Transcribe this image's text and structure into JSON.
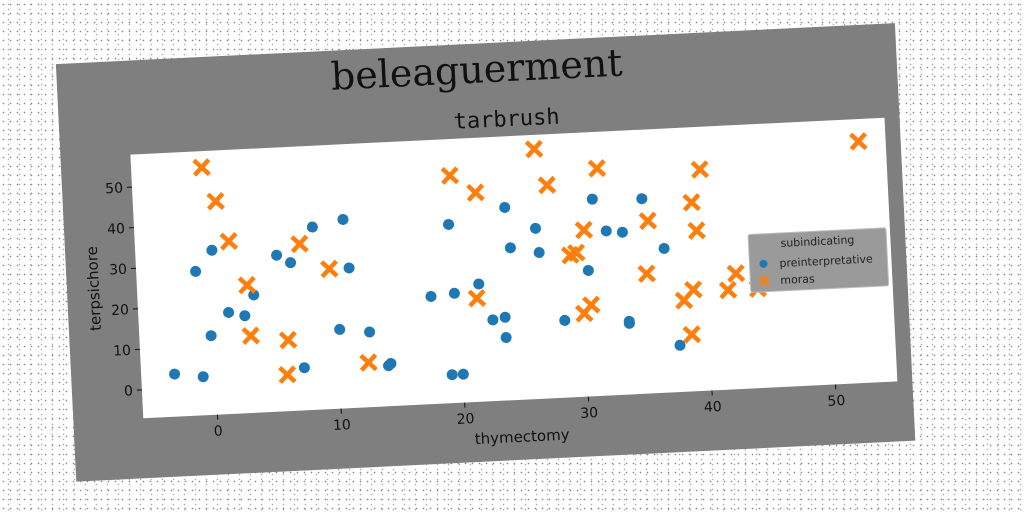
{
  "title": "beleaguerment",
  "chart_data": {
    "type": "scatter",
    "title": "tarbrush",
    "xlabel": "thymectomy",
    "ylabel": "terpsichore",
    "xlim": [
      -6,
      55
    ],
    "ylim": [
      -7,
      58
    ],
    "xticks": [
      0,
      10,
      20,
      30,
      40,
      50
    ],
    "yticks": [
      0,
      10,
      20,
      30,
      40,
      50
    ],
    "grid": false,
    "legend": {
      "title": "subindicating",
      "placement": "center-right",
      "entries": [
        "preinterpretative",
        "moras"
      ]
    },
    "series": [
      {
        "name": "preinterpretative",
        "marker": "circle",
        "color": "#1f77b4",
        "points": [
          [
            -3.3,
            3.5
          ],
          [
            -1.2,
            28.5
          ],
          [
            -1.0,
            2.5
          ],
          [
            -0.2,
            12.5
          ],
          [
            0.2,
            33.5
          ],
          [
            1.3,
            18
          ],
          [
            2.6,
            17
          ],
          [
            3.4,
            22
          ],
          [
            5.4,
            31.5
          ],
          [
            6.5,
            29.5
          ],
          [
            7.2,
            3.5
          ],
          [
            8.4,
            38
          ],
          [
            10.2,
            12.5
          ],
          [
            10.9,
            39.5
          ],
          [
            11.2,
            27.5
          ],
          [
            12.6,
            11.5
          ],
          [
            14.0,
            3.0
          ],
          [
            14.2,
            3.5
          ],
          [
            17.7,
            19.5
          ],
          [
            19.1,
            0
          ],
          [
            19.4,
            37
          ],
          [
            19.6,
            20
          ],
          [
            20.0,
            0
          ],
          [
            21.6,
            22
          ],
          [
            22.6,
            13
          ],
          [
            23.6,
            8.5
          ],
          [
            23.6,
            13.5
          ],
          [
            24.0,
            40.5
          ],
          [
            24.3,
            30.5
          ],
          [
            26.4,
            35
          ],
          [
            26.6,
            29
          ],
          [
            28.4,
            12
          ],
          [
            30.5,
            24
          ],
          [
            31.1,
            41.5
          ],
          [
            32.1,
            33.5
          ],
          [
            33.4,
            33
          ],
          [
            33.6,
            10.5
          ],
          [
            33.6,
            11
          ],
          [
            35.1,
            41
          ],
          [
            36.7,
            28.5
          ],
          [
            37.6,
            4.5
          ]
        ]
      },
      {
        "name": "moras",
        "marker": "x",
        "color": "#ff7f0e",
        "points": [
          [
            -0.3,
            54
          ],
          [
            0.7,
            45.5
          ],
          [
            1.6,
            35.5
          ],
          [
            2.9,
            24.5
          ],
          [
            3.0,
            12
          ],
          [
            5.8,
            2
          ],
          [
            6.0,
            10.5
          ],
          [
            7.3,
            34
          ],
          [
            9.6,
            27.5
          ],
          [
            12.4,
            4
          ],
          [
            19.7,
            49
          ],
          [
            21.4,
            18.5
          ],
          [
            21.7,
            44.5
          ],
          [
            26.6,
            54.5
          ],
          [
            27.5,
            45.5
          ],
          [
            29.1,
            28
          ],
          [
            29.6,
            28.5
          ],
          [
            30.0,
            13.5
          ],
          [
            30.3,
            34
          ],
          [
            30.6,
            15.5
          ],
          [
            31.6,
            49
          ],
          [
            35.2,
            22.5
          ],
          [
            35.5,
            35.5
          ],
          [
            38.1,
            15.5
          ],
          [
            38.6,
            7
          ],
          [
            38.9,
            18
          ],
          [
            39.1,
            39.5
          ],
          [
            39.4,
            32.5
          ],
          [
            39.9,
            47.5
          ],
          [
            41.7,
            17.5
          ],
          [
            42.4,
            21.5
          ],
          [
            44.1,
            17.5
          ],
          [
            47.1,
            22
          ],
          [
            52.8,
            52.5
          ]
        ]
      }
    ]
  }
}
